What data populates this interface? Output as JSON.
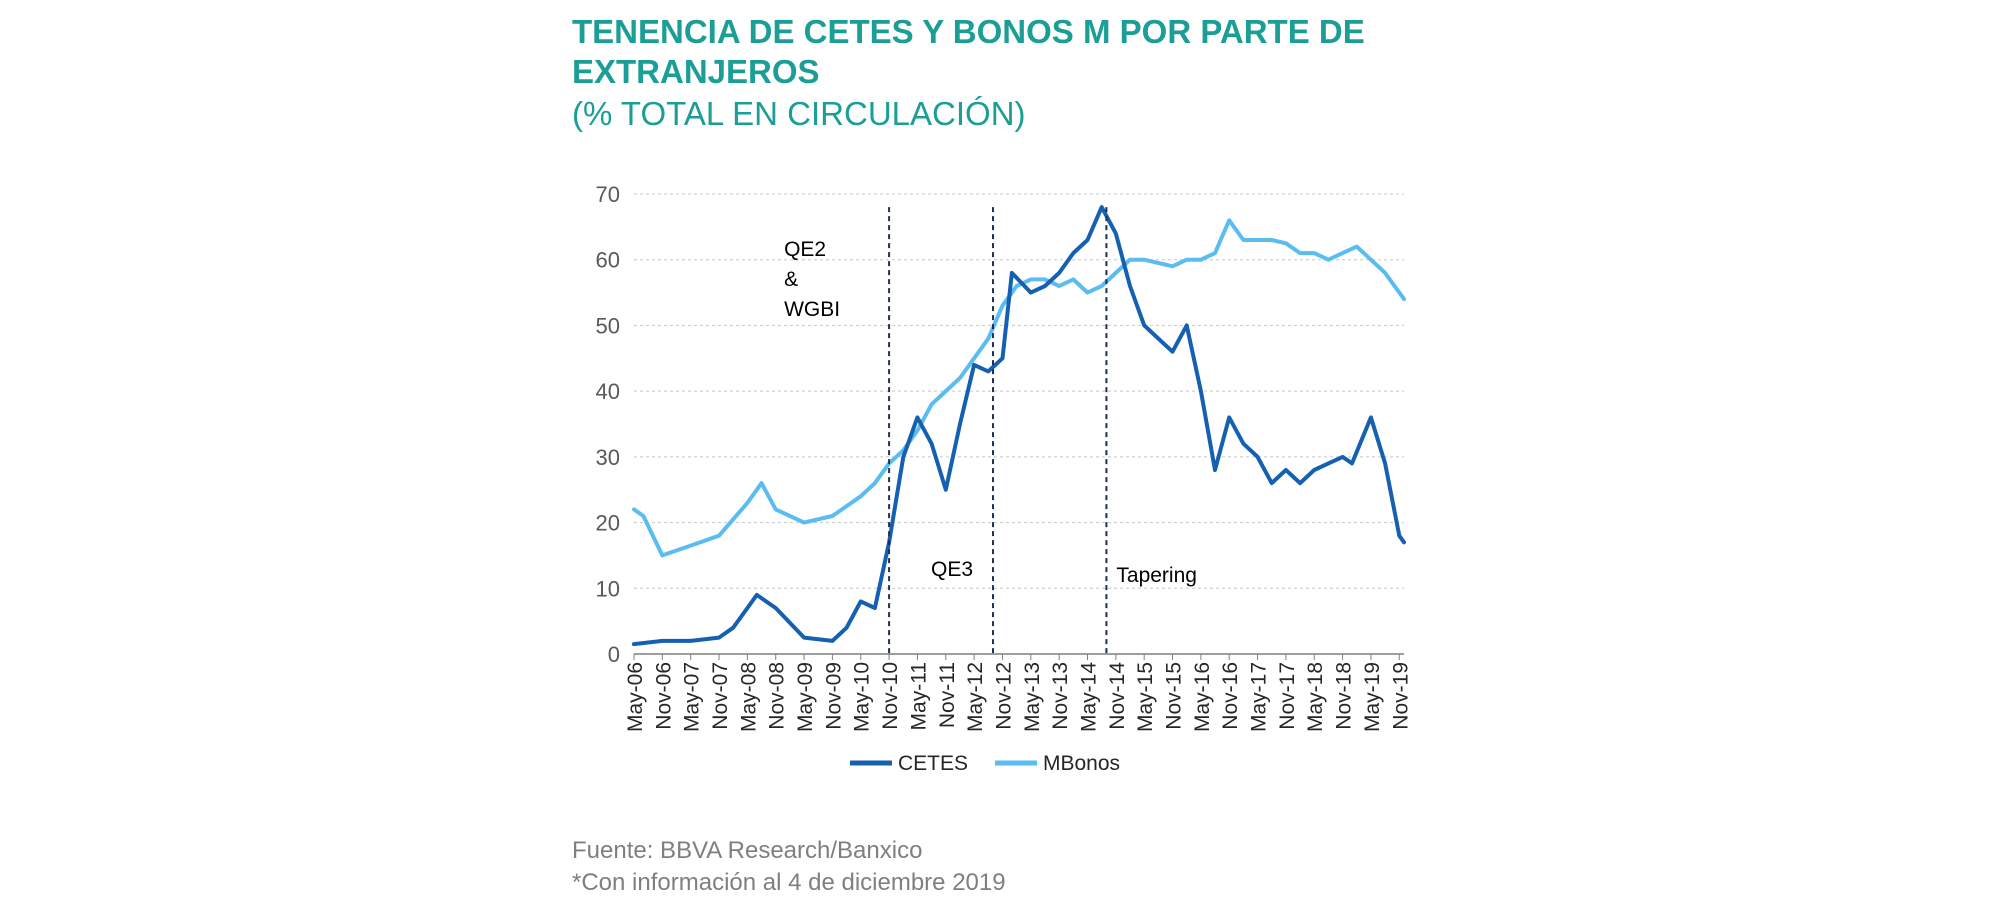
{
  "title": "TENENCIA DE CETES Y BONOS M POR PARTE DE EXTRANJEROS",
  "subtitle": "(% TOTAL EN CIRCULACIÓN)",
  "source_line1": "Fuente: BBVA Research/Banxico",
  "source_line2": "*Con información al 4 de diciembre 2019",
  "colors": {
    "title": "#1a9e96",
    "cetes": "#1560b0",
    "mbonos": "#5bbcf2",
    "grid": "#c8c8c8",
    "axis_text": "#595959",
    "annotation_line": "#1f2d5a"
  },
  "chart_data": {
    "type": "line",
    "x_tick_labels": [
      "May-06",
      "Nov-06",
      "May-07",
      "Nov-07",
      "May-08",
      "Nov-08",
      "May-09",
      "Nov-09",
      "May-10",
      "Nov-10",
      "May-11",
      "Nov-11",
      "May-12",
      "Nov-12",
      "May-13",
      "Nov-13",
      "May-14",
      "Nov-14",
      "May-15",
      "Nov-15",
      "May-16",
      "Nov-16",
      "May-17",
      "Nov-17",
      "May-18",
      "Nov-18",
      "May-19",
      "Nov-19"
    ],
    "y_ticks": [
      0,
      10,
      20,
      30,
      40,
      50,
      60,
      70
    ],
    "ylim": [
      0,
      70
    ],
    "grid": "horizontal dashed",
    "legend_position": "bottom",
    "series": [
      {
        "name": "CETES",
        "color": "#1560b0",
        "x": [
          "May-06",
          "Nov-06",
          "May-07",
          "Nov-07",
          "Feb-08",
          "May-08",
          "Jul-08",
          "Nov-08",
          "May-09",
          "Nov-09",
          "Feb-10",
          "May-10",
          "Aug-10",
          "Nov-10",
          "Feb-11",
          "May-11",
          "Aug-11",
          "Nov-11",
          "Feb-12",
          "May-12",
          "Aug-12",
          "Nov-12",
          "Jan-13",
          "May-13",
          "Aug-13",
          "Nov-13",
          "Feb-14",
          "May-14",
          "Aug-14",
          "Nov-14",
          "Feb-15",
          "May-15",
          "Aug-15",
          "Nov-15",
          "Feb-16",
          "May-16",
          "Aug-16",
          "Nov-16",
          "Feb-17",
          "May-17",
          "Aug-17",
          "Nov-17",
          "Feb-18",
          "May-18",
          "Aug-18",
          "Nov-18",
          "Jan-19",
          "May-19",
          "Aug-19",
          "Nov-19",
          "Dec-19"
        ],
        "values": [
          1.5,
          2,
          2,
          2.5,
          4,
          7,
          9,
          7,
          2.5,
          2,
          4,
          8,
          7,
          17,
          30,
          36,
          32,
          25,
          35,
          44,
          43,
          45,
          58,
          55,
          56,
          58,
          61,
          63,
          68,
          64,
          56,
          50,
          48,
          46,
          50,
          40,
          28,
          36,
          32,
          30,
          26,
          28,
          26,
          28,
          29,
          30,
          29,
          36,
          29,
          18,
          17
        ]
      },
      {
        "name": "MBonos",
        "color": "#5bbcf2",
        "x": [
          "May-06",
          "Jul-06",
          "Nov-06",
          "May-07",
          "Nov-07",
          "May-08",
          "Aug-08",
          "Nov-08",
          "May-09",
          "Nov-09",
          "May-10",
          "Aug-10",
          "Nov-10",
          "Feb-11",
          "May-11",
          "Aug-11",
          "Nov-11",
          "Feb-12",
          "May-12",
          "Aug-12",
          "Nov-12",
          "Feb-13",
          "May-13",
          "Aug-13",
          "Nov-13",
          "Feb-14",
          "May-14",
          "Aug-14",
          "Nov-14",
          "Feb-15",
          "May-15",
          "Aug-15",
          "Nov-15",
          "Feb-16",
          "May-16",
          "Aug-16",
          "Nov-16",
          "Feb-17",
          "May-17",
          "Aug-17",
          "Nov-17",
          "Feb-18",
          "May-18",
          "Aug-18",
          "Nov-18",
          "Feb-19",
          "May-19",
          "Aug-19",
          "Nov-19",
          "Dec-19"
        ],
        "values": [
          22,
          21,
          15,
          16.5,
          18,
          23,
          26,
          22,
          20,
          21,
          24,
          26,
          29,
          31,
          34,
          38,
          40,
          42,
          45,
          48,
          53,
          56,
          57,
          57,
          56,
          57,
          55,
          56,
          58,
          60,
          60,
          59.5,
          59,
          60,
          60,
          61,
          66,
          63,
          63,
          63,
          62.5,
          61,
          61,
          60,
          61,
          62,
          60,
          58,
          55,
          54
        ]
      }
    ],
    "annotations": [
      {
        "label_lines": [
          "QE2",
          "&",
          "WGBI"
        ],
        "x": "Nov-10"
      },
      {
        "label_lines": [
          "QE3"
        ],
        "x": "Sep-12"
      },
      {
        "label_lines": [
          "Tapering"
        ],
        "x": "Sep-14"
      }
    ]
  }
}
